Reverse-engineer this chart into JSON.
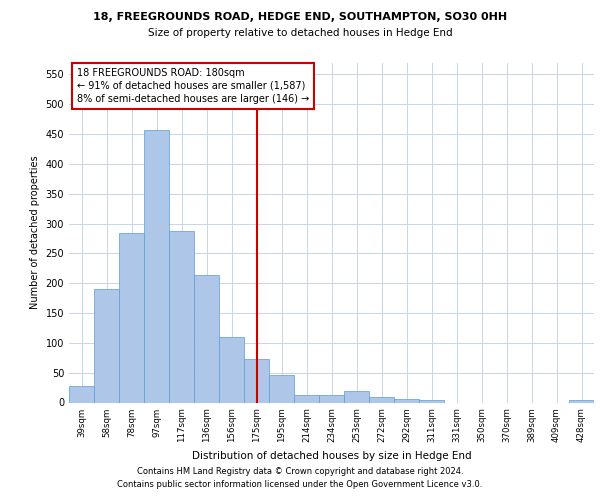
{
  "title1": "18, FREEGROUNDS ROAD, HEDGE END, SOUTHAMPTON, SO30 0HH",
  "title2": "Size of property relative to detached houses in Hedge End",
  "xlabel": "Distribution of detached houses by size in Hedge End",
  "ylabel": "Number of detached properties",
  "bar_labels": [
    "39sqm",
    "58sqm",
    "78sqm",
    "97sqm",
    "117sqm",
    "136sqm",
    "156sqm",
    "175sqm",
    "195sqm",
    "214sqm",
    "234sqm",
    "253sqm",
    "272sqm",
    "292sqm",
    "311sqm",
    "331sqm",
    "350sqm",
    "370sqm",
    "389sqm",
    "409sqm",
    "428sqm"
  ],
  "bar_values": [
    28,
    191,
    284,
    457,
    288,
    213,
    110,
    73,
    46,
    12,
    12,
    20,
    9,
    6,
    5,
    0,
    0,
    0,
    0,
    0,
    4
  ],
  "bar_color": "#AEC6E8",
  "bar_edge_color": "#5B9BD5",
  "vline_x": 7,
  "vline_color": "#CC0000",
  "annotation_text": "18 FREEGROUNDS ROAD: 180sqm\n← 91% of detached houses are smaller (1,587)\n8% of semi-detached houses are larger (146) →",
  "annotation_box_color": "#CC0000",
  "ylim": [
    0,
    570
  ],
  "yticks": [
    0,
    50,
    100,
    150,
    200,
    250,
    300,
    350,
    400,
    450,
    500,
    550
  ],
  "footer1": "Contains HM Land Registry data © Crown copyright and database right 2024.",
  "footer2": "Contains public sector information licensed under the Open Government Licence v3.0.",
  "bg_color": "#FFFFFF",
  "grid_color": "#C8D4E8"
}
